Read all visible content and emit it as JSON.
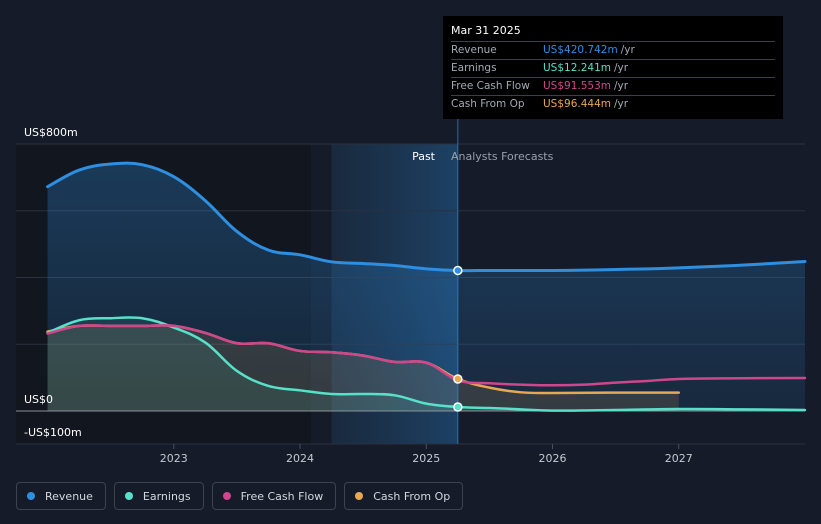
{
  "chart_data": {
    "type": "area",
    "y_labels": {
      "top": "US$800m",
      "zero": "US$0",
      "bottom": "-US$100m"
    },
    "ylim": [
      -100,
      800
    ],
    "x_ticks": [
      "2023",
      "2024",
      "2025",
      "2026",
      "2027"
    ],
    "x_tick_values": [
      2023.0,
      2024.0,
      2025.0,
      2026.0,
      2027.0
    ],
    "xlim": [
      2021.75,
      2028.0
    ],
    "past_label": "Past",
    "forecast_label": "Analysts Forecasts",
    "divider_x": 2025.25,
    "shade_start_x": 2024.25,
    "grid": true,
    "series": [
      {
        "name": "Revenue",
        "color": "#2e8fe0",
        "fill": true,
        "points": [
          [
            2022.0,
            672
          ],
          [
            2022.25,
            722
          ],
          [
            2022.5,
            740
          ],
          [
            2022.75,
            738
          ],
          [
            2023.0,
            702
          ],
          [
            2023.25,
            630
          ],
          [
            2023.5,
            538
          ],
          [
            2023.75,
            482
          ],
          [
            2024.0,
            468
          ],
          [
            2024.25,
            447
          ],
          [
            2024.5,
            442
          ],
          [
            2024.75,
            436
          ],
          [
            2025.0,
            426
          ],
          [
            2025.25,
            421
          ],
          [
            2025.5,
            421
          ],
          [
            2025.75,
            421
          ],
          [
            2026.0,
            421
          ],
          [
            2026.25,
            422
          ],
          [
            2026.5,
            424
          ],
          [
            2026.75,
            426
          ],
          [
            2027.0,
            429
          ],
          [
            2027.5,
            437
          ],
          [
            2028.0,
            448
          ]
        ]
      },
      {
        "name": "Earnings",
        "color": "#58e0c8",
        "fill": true,
        "points": [
          [
            2022.0,
            234
          ],
          [
            2022.25,
            272
          ],
          [
            2022.5,
            278
          ],
          [
            2022.75,
            278
          ],
          [
            2023.0,
            250
          ],
          [
            2023.25,
            205
          ],
          [
            2023.5,
            120
          ],
          [
            2023.75,
            75
          ],
          [
            2024.0,
            62
          ],
          [
            2024.25,
            51
          ],
          [
            2024.5,
            51
          ],
          [
            2024.75,
            47
          ],
          [
            2025.0,
            22
          ],
          [
            2025.25,
            12
          ],
          [
            2025.5,
            9
          ],
          [
            2025.75,
            5
          ],
          [
            2026.0,
            1
          ],
          [
            2026.5,
            3
          ],
          [
            2027.0,
            6
          ],
          [
            2027.5,
            5
          ],
          [
            2028.0,
            3
          ]
        ]
      },
      {
        "name": "Free Cash Flow",
        "color": "#d0468c",
        "fill": false,
        "points": [
          [
            2022.0,
            232
          ],
          [
            2022.25,
            255
          ],
          [
            2022.5,
            255
          ],
          [
            2022.75,
            255
          ],
          [
            2023.0,
            255
          ],
          [
            2023.25,
            234
          ],
          [
            2023.5,
            203
          ],
          [
            2023.75,
            203
          ],
          [
            2024.0,
            180
          ],
          [
            2024.25,
            176
          ],
          [
            2024.5,
            166
          ],
          [
            2024.75,
            147
          ],
          [
            2025.0,
            145
          ],
          [
            2025.25,
            92
          ],
          [
            2025.5,
            83
          ],
          [
            2025.75,
            79
          ],
          [
            2026.0,
            77
          ],
          [
            2026.25,
            79
          ],
          [
            2026.5,
            85
          ],
          [
            2026.75,
            90
          ],
          [
            2027.0,
            96
          ],
          [
            2027.5,
            98
          ],
          [
            2028.0,
            99
          ]
        ]
      },
      {
        "name": "Cash From Op",
        "color": "#e8a853",
        "fill": true,
        "points": [
          [
            2022.0,
            238
          ],
          [
            2022.25,
            255
          ],
          [
            2022.5,
            255
          ],
          [
            2022.75,
            255
          ],
          [
            2023.0,
            255
          ],
          [
            2023.25,
            234
          ],
          [
            2023.5,
            203
          ],
          [
            2023.75,
            203
          ],
          [
            2024.0,
            180
          ],
          [
            2024.25,
            176
          ],
          [
            2024.5,
            166
          ],
          [
            2024.75,
            147
          ],
          [
            2025.0,
            145
          ],
          [
            2025.25,
            96
          ],
          [
            2025.5,
            70
          ],
          [
            2025.75,
            56
          ],
          [
            2026.0,
            54
          ],
          [
            2026.5,
            55
          ],
          [
            2027.0,
            55
          ]
        ]
      }
    ],
    "highlight_points": [
      {
        "series": "Revenue",
        "x": 2025.25,
        "y": 421
      },
      {
        "series": "Cash From Op",
        "x": 2025.25,
        "y": 96
      },
      {
        "series": "Earnings",
        "x": 2025.25,
        "y": 12
      }
    ]
  },
  "tooltip": {
    "date": "Mar 31 2025",
    "rows": [
      {
        "label": "Revenue",
        "value": "US$420.742m",
        "unit": "/yr",
        "color": "#2e8fe0"
      },
      {
        "label": "Earnings",
        "value": "US$12.241m",
        "unit": "/yr",
        "color": "#58e0c8"
      },
      {
        "label": "Free Cash Flow",
        "value": "US$91.553m",
        "unit": "/yr",
        "color": "#d0468c"
      },
      {
        "label": "Cash From Op",
        "value": "US$96.444m",
        "unit": "/yr",
        "color": "#e8a853"
      }
    ]
  },
  "legend": [
    {
      "label": "Revenue",
      "color": "#2e8fe0"
    },
    {
      "label": "Earnings",
      "color": "#58e0c8"
    },
    {
      "label": "Free Cash Flow",
      "color": "#d0468c"
    },
    {
      "label": "Cash From Op",
      "color": "#e8a853"
    }
  ]
}
